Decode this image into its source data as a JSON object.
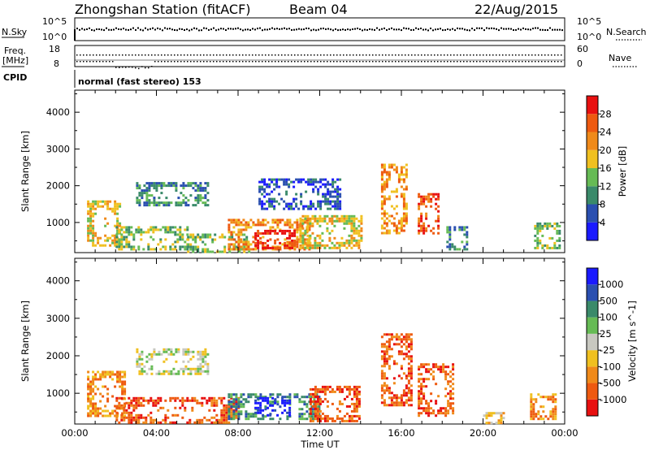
{
  "header": {
    "station": "Zhongshan Station (fitACF)",
    "beam": "Beam 04",
    "date": "22/Aug/2015"
  },
  "strip_labels": {
    "nsky": "N.Sky",
    "nsearch": "N.Search",
    "nsky_ticks": [
      "10^5",
      "10^0"
    ],
    "nsearch_ticks": [
      "10^5",
      "10^0"
    ],
    "freq_line1": "Freq.",
    "freq_line2": "[MHz]",
    "freq_ticks": [
      "18",
      "8"
    ],
    "nave": "Nave",
    "nave_ticks": [
      "60",
      "0"
    ],
    "cpid": "CPID",
    "cpid_value": "normal (fast stereo) 153"
  },
  "colors": {
    "power_scale": [
      "#1a1aff",
      "#2a4fb0",
      "#3a8a6a",
      "#66bb55",
      "#f0c020",
      "#f08a1a",
      "#ee5a10",
      "#e81010"
    ],
    "velocity_scale": [
      "#e81010",
      "#ee5a10",
      "#f08a1a",
      "#f0c020",
      "#c8c8c0",
      "#66bb55",
      "#3a8a6a",
      "#2a4fb0",
      "#1a1aff"
    ],
    "frame": "#000000"
  },
  "chart_data": [
    {
      "type": "heatmap",
      "name": "power",
      "ylabel": "Slant Range [km]",
      "yticks": [
        "1000",
        "2000",
        "3000",
        "4000"
      ],
      "ylim": [
        180,
        4600
      ],
      "xlim": [
        0,
        24
      ],
      "colorbar_label": "Power [dB]",
      "colorbar_ticks": [
        "4",
        "8",
        "12",
        "16",
        "20",
        "24",
        "28"
      ],
      "patches": [
        {
          "t0": 0.6,
          "t1": 2.2,
          "r0": 400,
          "r1": 1600,
          "level": 4
        },
        {
          "t0": 2.0,
          "t1": 5.5,
          "r0": 250,
          "r1": 900,
          "level": 3
        },
        {
          "t0": 3.0,
          "t1": 6.5,
          "r0": 1500,
          "r1": 2100,
          "level": 2
        },
        {
          "t0": 5.5,
          "t1": 8.5,
          "r0": 200,
          "r1": 700,
          "level": 3
        },
        {
          "t0": 7.5,
          "t1": 11.5,
          "r0": 250,
          "r1": 1100,
          "level": 5
        },
        {
          "t0": 8.8,
          "t1": 10.8,
          "r0": 300,
          "r1": 800,
          "level": 7
        },
        {
          "t0": 11.0,
          "t1": 14.0,
          "r0": 300,
          "r1": 1200,
          "level": 4
        },
        {
          "t0": 9.0,
          "t1": 13.0,
          "r0": 1400,
          "r1": 2200,
          "level": 1
        },
        {
          "t0": 15.0,
          "t1": 16.2,
          "r0": 700,
          "r1": 2600,
          "level": 5
        },
        {
          "t0": 16.8,
          "t1": 17.8,
          "r0": 700,
          "r1": 1800,
          "level": 6
        },
        {
          "t0": 18.2,
          "t1": 19.2,
          "r0": 300,
          "r1": 900,
          "level": 2
        },
        {
          "t0": 22.5,
          "t1": 23.8,
          "r0": 300,
          "r1": 1000,
          "level": 3
        }
      ]
    },
    {
      "type": "heatmap",
      "name": "velocity",
      "ylabel": "Slant Range [km]",
      "yticks": [
        "1000",
        "2000",
        "3000",
        "4000"
      ],
      "ylim": [
        180,
        4600
      ],
      "xlim": [
        0,
        24
      ],
      "xlabel": "Time UT",
      "xticks": [
        "00:00",
        "04:00",
        "08:00",
        "12:00",
        "16:00",
        "20:00",
        "00:00"
      ],
      "colorbar_label": "Velocity [m s^-1]",
      "colorbar_ticks": [
        "-1000",
        "-500",
        "-100",
        "-25",
        "25",
        "100",
        "500",
        "1000"
      ],
      "patches": [
        {
          "t0": 0.6,
          "t1": 2.5,
          "r0": 400,
          "r1": 1600,
          "level": 2
        },
        {
          "t0": 2.0,
          "t1": 8.0,
          "r0": 200,
          "r1": 900,
          "level": 1
        },
        {
          "t0": 3.0,
          "t1": 6.5,
          "r0": 1500,
          "r1": 2200,
          "level": 4
        },
        {
          "t0": 7.5,
          "t1": 12.0,
          "r0": 300,
          "r1": 1000,
          "level": 6
        },
        {
          "t0": 8.8,
          "t1": 10.5,
          "r0": 400,
          "r1": 900,
          "level": 8
        },
        {
          "t0": 11.5,
          "t1": 14.0,
          "r0": 250,
          "r1": 1200,
          "level": 1
        },
        {
          "t0": 15.0,
          "t1": 16.5,
          "r0": 700,
          "r1": 2600,
          "level": 1
        },
        {
          "t0": 16.8,
          "t1": 18.5,
          "r0": 400,
          "r1": 1800,
          "level": 1
        },
        {
          "t0": 20.0,
          "t1": 21.0,
          "r0": 200,
          "r1": 500,
          "level": 3
        },
        {
          "t0": 22.3,
          "t1": 23.5,
          "r0": 300,
          "r1": 1000,
          "level": 2
        }
      ]
    }
  ]
}
